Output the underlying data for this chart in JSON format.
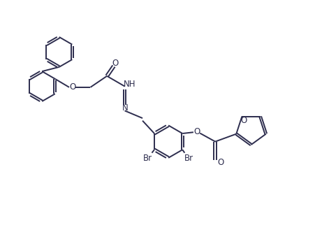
{
  "background_color": "#ffffff",
  "line_color": "#2d2d4e",
  "line_width": 1.4,
  "font_size": 8.5,
  "fig_width": 4.51,
  "fig_height": 3.32,
  "dpi": 100,
  "xlim": [
    0,
    10
  ],
  "ylim": [
    0,
    7.4
  ]
}
